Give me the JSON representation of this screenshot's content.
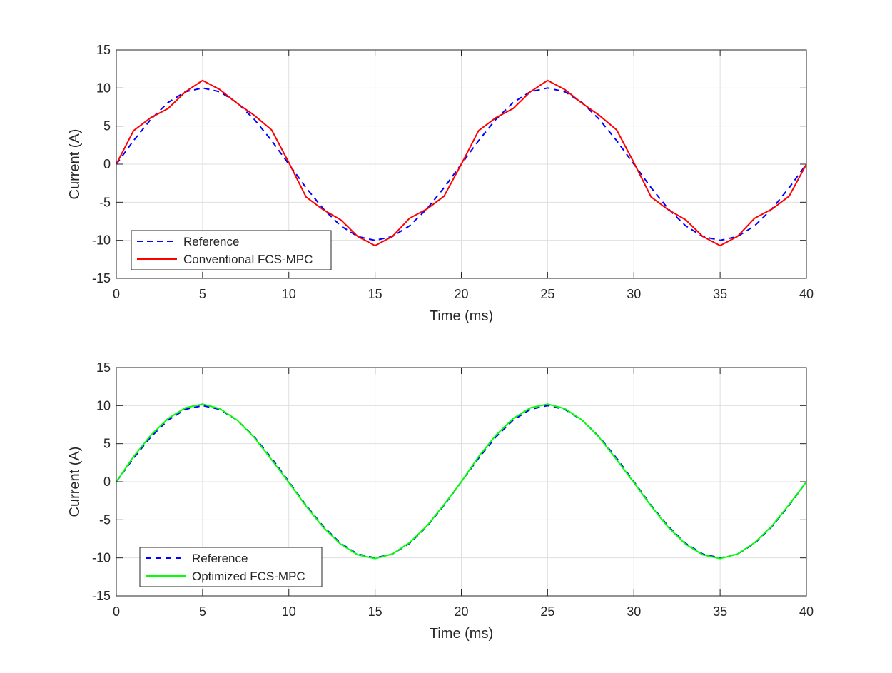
{
  "chart_data": [
    {
      "type": "line",
      "xlabel": "Time (ms)",
      "ylabel": "Current (A)",
      "xlim": [
        0,
        40
      ],
      "ylim": [
        -15,
        15
      ],
      "xticks": [
        0,
        5,
        10,
        15,
        20,
        25,
        30,
        35,
        40
      ],
      "yticks": [
        -15,
        -10,
        -5,
        0,
        5,
        10,
        15
      ],
      "xtick_labels": [
        "0",
        "5",
        "10",
        "15",
        "20",
        "25",
        "30",
        "35",
        "40"
      ],
      "ytick_labels": [
        "-15",
        "-10",
        "-5",
        "0",
        "5",
        "10",
        "15"
      ],
      "grid": true,
      "legend_position": "bottom-left",
      "series": [
        {
          "name": "Reference",
          "style": "dashed",
          "color": "#0000ff",
          "x": [
            0,
            1,
            2,
            3,
            4,
            5,
            6,
            7,
            8,
            9,
            10,
            11,
            12,
            13,
            14,
            15,
            16,
            17,
            18,
            19,
            20,
            21,
            22,
            23,
            24,
            25,
            26,
            27,
            28,
            29,
            30,
            31,
            32,
            33,
            34,
            35,
            36,
            37,
            38,
            39,
            40
          ],
          "y": [
            0,
            3.09,
            5.88,
            8.09,
            9.51,
            10,
            9.51,
            8.09,
            5.88,
            3.09,
            0,
            -3.09,
            -5.88,
            -8.09,
            -9.51,
            -10,
            -9.51,
            -8.09,
            -5.88,
            -3.09,
            0,
            3.09,
            5.88,
            8.09,
            9.51,
            10,
            9.51,
            8.09,
            5.88,
            3.09,
            0,
            -3.09,
            -5.88,
            -8.09,
            -9.51,
            -10,
            -9.51,
            -8.09,
            -5.88,
            -3.09,
            0
          ]
        },
        {
          "name": "Conventional FCS-MPC",
          "style": "solid",
          "color": "#ff0000",
          "x": [
            0,
            1,
            2,
            3,
            4,
            5,
            6,
            7,
            8,
            9,
            10,
            11,
            12,
            13,
            14,
            15,
            16,
            17,
            18,
            19,
            20,
            21,
            22,
            23,
            24,
            25,
            26,
            27,
            28,
            29,
            30,
            31,
            32,
            33,
            34,
            35,
            36,
            37,
            38,
            39,
            40
          ],
          "y": [
            0,
            4.4,
            6.1,
            7.3,
            9.5,
            11,
            9.8,
            8.0,
            6.4,
            4.5,
            0.2,
            -4.3,
            -6.0,
            -7.3,
            -9.5,
            -10.7,
            -9.5,
            -7.1,
            -5.9,
            -4.2,
            0,
            4.4,
            6.1,
            7.3,
            9.5,
            11,
            9.8,
            8.0,
            6.4,
            4.5,
            0.2,
            -4.3,
            -6.0,
            -7.3,
            -9.5,
            -10.7,
            -9.5,
            -7.1,
            -5.9,
            -4.2,
            0
          ]
        }
      ]
    },
    {
      "type": "line",
      "xlabel": "Time (ms)",
      "ylabel": "Current (A)",
      "xlim": [
        0,
        40
      ],
      "ylim": [
        -15,
        15
      ],
      "xticks": [
        0,
        5,
        10,
        15,
        20,
        25,
        30,
        35,
        40
      ],
      "yticks": [
        -15,
        -10,
        -5,
        0,
        5,
        10,
        15
      ],
      "xtick_labels": [
        "0",
        "5",
        "10",
        "15",
        "20",
        "25",
        "30",
        "35",
        "40"
      ],
      "ytick_labels": [
        "-15",
        "-10",
        "-5",
        "0",
        "5",
        "10",
        "15"
      ],
      "grid": true,
      "legend_position": "bottom-left",
      "series": [
        {
          "name": "Reference",
          "style": "dashed",
          "color": "#0000ff",
          "x": [
            0,
            1,
            2,
            3,
            4,
            5,
            6,
            7,
            8,
            9,
            10,
            11,
            12,
            13,
            14,
            15,
            16,
            17,
            18,
            19,
            20,
            21,
            22,
            23,
            24,
            25,
            26,
            27,
            28,
            29,
            30,
            31,
            32,
            33,
            34,
            35,
            36,
            37,
            38,
            39,
            40
          ],
          "y": [
            0,
            3.09,
            5.88,
            8.09,
            9.51,
            10,
            9.51,
            8.09,
            5.88,
            3.09,
            0,
            -3.09,
            -5.88,
            -8.09,
            -9.51,
            -10,
            -9.51,
            -8.09,
            -5.88,
            -3.09,
            0,
            3.09,
            5.88,
            8.09,
            9.51,
            10,
            9.51,
            8.09,
            5.88,
            3.09,
            0,
            -3.09,
            -5.88,
            -8.09,
            -9.51,
            -10,
            -9.51,
            -8.09,
            -5.88,
            -3.09,
            0
          ]
        },
        {
          "name": "Optimized FCS-MPC",
          "style": "solid",
          "color": "#00ff00",
          "x": [
            0,
            1,
            2,
            3,
            4,
            5,
            6,
            7,
            8,
            9,
            10,
            11,
            12,
            13,
            14,
            15,
            16,
            17,
            18,
            19,
            20,
            21,
            22,
            23,
            24,
            25,
            26,
            27,
            28,
            29,
            30,
            31,
            32,
            33,
            34,
            35,
            36,
            37,
            38,
            39,
            40
          ],
          "y": [
            0,
            3.3,
            6.1,
            8.3,
            9.7,
            10.2,
            9.6,
            8.1,
            5.8,
            2.9,
            -0.1,
            -3.2,
            -6.0,
            -8.2,
            -9.6,
            -10.1,
            -9.5,
            -8.0,
            -5.8,
            -3.0,
            0,
            3.3,
            6.1,
            8.3,
            9.7,
            10.2,
            9.6,
            8.1,
            5.8,
            2.9,
            -0.1,
            -3.2,
            -6.0,
            -8.2,
            -9.6,
            -10.1,
            -9.5,
            -8.0,
            -5.8,
            -3.0,
            0
          ]
        }
      ]
    }
  ]
}
